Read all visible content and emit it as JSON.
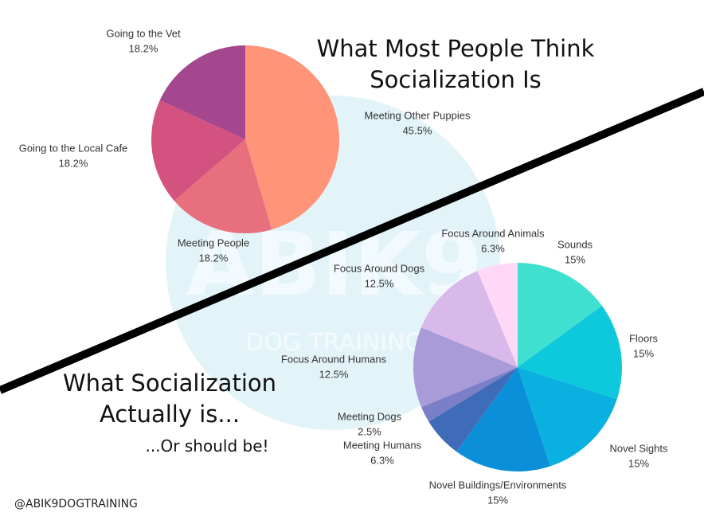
{
  "chart_data": [
    {
      "type": "pie",
      "title": "What Most People Think Socialization Is",
      "categories": [
        "Meeting Other Puppies",
        "Meeting People",
        "Going to the Local Cafe",
        "Going to the Vet"
      ],
      "values": [
        45.5,
        18.2,
        18.2,
        18.2
      ],
      "value_labels": [
        "45.5%",
        "18.2%",
        "18.2%",
        "18.2%"
      ],
      "colors": [
        "#ff9478",
        "#e8707e",
        "#d3527f",
        "#a5478f"
      ]
    },
    {
      "type": "pie",
      "title": "What Socialization Actually is...",
      "subtitle": "...Or should be!",
      "categories": [
        "Sounds",
        "Floors",
        "Novel Sights",
        "Novel Buildings/Environments",
        "Meeting Humans",
        "Meeting Dogs",
        "Focus Around Humans",
        "Focus Around Dogs",
        "Focus Around Animals"
      ],
      "values": [
        15,
        15,
        15,
        15,
        6.3,
        2.5,
        12.5,
        12.5,
        6.3
      ],
      "value_labels": [
        "15%",
        "15%",
        "15%",
        "15%",
        "6.3%",
        "2.5%",
        "12.5%",
        "12.5%",
        "6.3%"
      ],
      "colors": [
        "#40e0d0",
        "#0ec8dc",
        "#0ab0e0",
        "#0a8fd8",
        "#3f6cb8",
        "#7a7fc8",
        "#a89bd8",
        "#d9b8ea",
        "#ffd8f8"
      ]
    }
  ],
  "watermark": {
    "logo": "ABIK9",
    "text": "DOG TRAINING"
  },
  "footer": "@ABIK9DOGTRAINING"
}
